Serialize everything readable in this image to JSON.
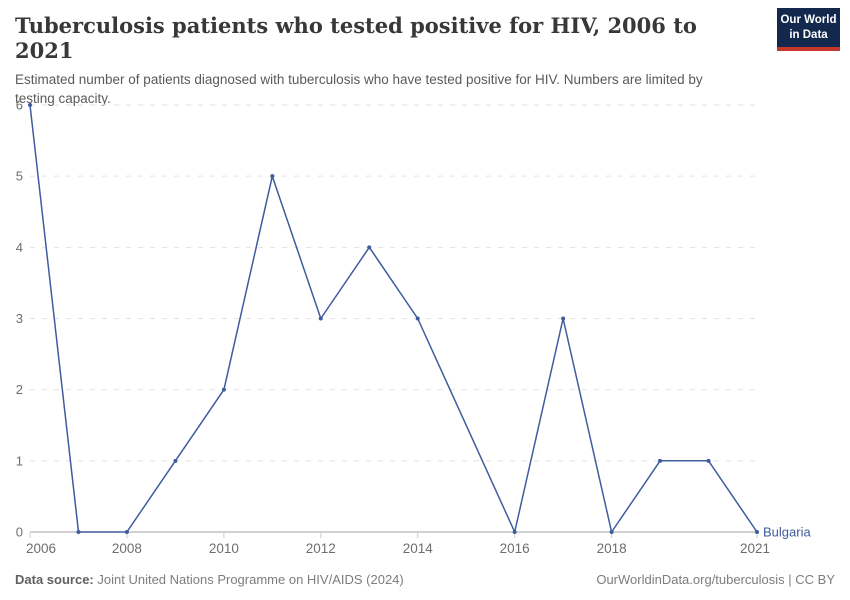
{
  "header": {
    "title": "Tuberculosis patients who tested positive for HIV, 2006 to 2021",
    "subtitle": "Estimated number of patients diagnosed with tuberculosis who have tested positive for HIV. Numbers are limited by testing capacity.",
    "logo": {
      "line1": "Our World",
      "line2": "in Data",
      "bg_color": "#12294D",
      "accent_color": "#C7362C"
    }
  },
  "chart_data": {
    "type": "line",
    "title": "Tuberculosis patients who tested positive for HIV, 2006 to 2021",
    "entity_label": "Bulgaria",
    "series": [
      {
        "name": "Bulgaria",
        "color": "#3E5C9E",
        "points": [
          {
            "year": 2006,
            "value": 6
          },
          {
            "year": 2007,
            "value": 0
          },
          {
            "year": 2008,
            "value": 0
          },
          {
            "year": 2009,
            "value": 1
          },
          {
            "year": 2010,
            "value": 2
          },
          {
            "year": 2011,
            "value": 5
          },
          {
            "year": 2012,
            "value": 3
          },
          {
            "year": 2013,
            "value": 4
          },
          {
            "year": 2014,
            "value": 3
          },
          {
            "year": 2016,
            "value": 0
          },
          {
            "year": 2017,
            "value": 3
          },
          {
            "year": 2018,
            "value": 0
          },
          {
            "year": 2019,
            "value": 1
          },
          {
            "year": 2020,
            "value": 1
          },
          {
            "year": 2021,
            "value": 0
          }
        ]
      }
    ],
    "x_range": [
      2006,
      2021
    ],
    "y_range": [
      0,
      6
    ],
    "x_ticks": [
      2006,
      2008,
      2010,
      2012,
      2014,
      2016,
      2018,
      2021
    ],
    "y_ticks": [
      0,
      1,
      2,
      3,
      4,
      5,
      6
    ],
    "grid": "horizontal-dashed",
    "legend_position": "end-of-line-label",
    "colors": {
      "grid": "#e2e2e2",
      "axis_line": "#a3a3a3",
      "tick_mark": "#cccccc",
      "axis_label": "#6e6e6e"
    }
  },
  "footer": {
    "data_source_label": "Data source:",
    "data_source_value": "Joint United Nations Programme on HIV/AIDS (2024)",
    "credit": "OurWorldinData.org/tuberculosis | CC BY"
  }
}
